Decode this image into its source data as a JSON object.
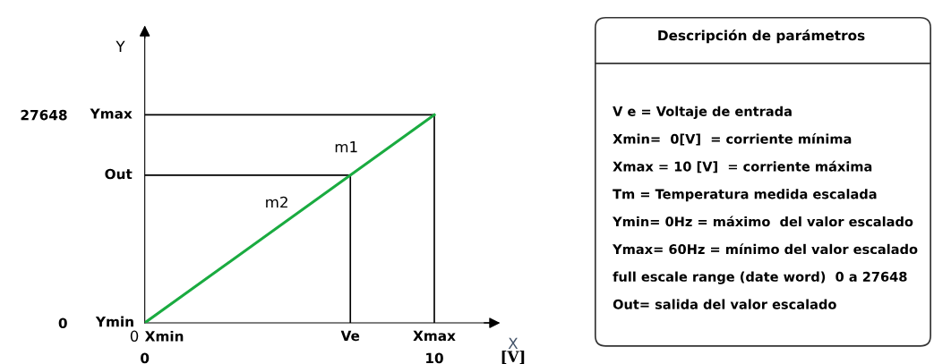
{
  "chart_data": [
    {
      "type": "line",
      "xlabel": "X",
      "ylabel": "Y",
      "x": [
        0,
        10
      ],
      "series": [
        {
          "color": "#1aab40",
          "values": [
            0,
            27648
          ]
        }
      ],
      "xlim": [
        0,
        12
      ],
      "ylim": [
        0,
        38700
      ],
      "xticks": [
        0,
        10
      ],
      "yticks": [
        0,
        27648
      ],
      "ref_lines": [
        {
          "axis": "y",
          "value": 27648,
          "label": "Ymax",
          "color": "#000000"
        },
        {
          "axis": "x",
          "value": 10,
          "label": "Xmax",
          "color": "#000000"
        },
        {
          "axis": "y",
          "value": 19630,
          "label": "Out",
          "color": "#000000"
        },
        {
          "axis": "x",
          "value": 7.1,
          "label": "Ve",
          "color": "#000000"
        }
      ],
      "annotations": [
        "m1",
        "m2",
        "[V]",
        "0",
        "Xmin",
        "Ymin"
      ],
      "grid": false,
      "legend": false,
      "marker": "none",
      "line_style": "solid"
    },
    {
      "type": "other",
      "title": "Descripción de parámetros",
      "annotations": [
        "V e = Voltaje de entrada",
        "Xmin=  0[V]  = corriente mínima",
        "Xmax = 10 [V]  = corriente máxima",
        "Tm = Temperatura medida escalada",
        "Ymin= 0Hz = máximo  del valor escalado",
        "Ymax= 60Hz = mínimo del valor escalado",
        "full escale range (date word)  0 a 27648",
        "Out= salida del valor escalado"
      ]
    }
  ]
}
